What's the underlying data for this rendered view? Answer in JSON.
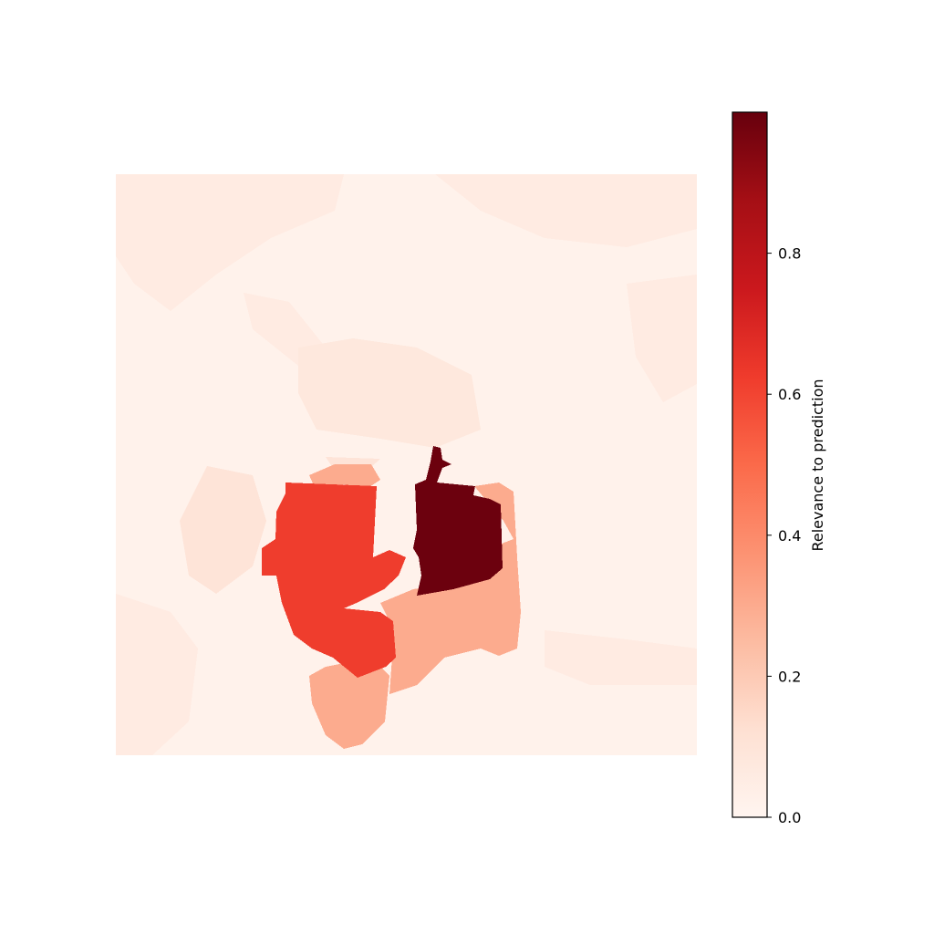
{
  "chart_data": {
    "type": "heatmap",
    "colormap": "Reds",
    "colormap_stops": [
      "#fff5f0",
      "#fee0d2",
      "#fcbba1",
      "#fc9272",
      "#fb6a4a",
      "#ef3b2c",
      "#cb181d",
      "#a50f15",
      "#67000d"
    ],
    "value_range": [
      0,
      1
    ],
    "colorbar": {
      "label": "Relevance to prediction",
      "ticks": [
        0.0,
        0.2,
        0.4,
        0.6,
        0.8
      ],
      "tick_labels": [
        "0.0",
        "0.2",
        "0.4",
        "0.6",
        "0.8"
      ],
      "position": "right"
    },
    "background_value": 0.02,
    "regions": [
      {
        "name": "segment-background-texture",
        "value": 0.06
      },
      {
        "name": "segment-upper-center",
        "value": 0.08
      },
      {
        "name": "segment-left-strip",
        "value": 0.1
      },
      {
        "name": "segment-lower-right-plateau",
        "value": 0.3
      },
      {
        "name": "segment-bottom-lobe",
        "value": 0.3
      },
      {
        "name": "segment-left-large",
        "value": 0.62
      },
      {
        "name": "segment-center-peak",
        "value": 0.99
      }
    ]
  }
}
